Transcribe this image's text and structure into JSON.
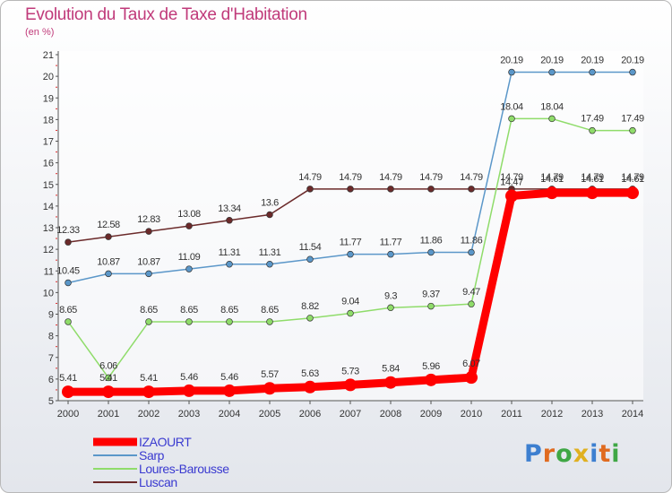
{
  "title": "Evolution du Taux de Taxe d'Habitation",
  "subtitle": "(en %)",
  "logo": {
    "text": "Proxiti",
    "colors": [
      "#3d7fd0",
      "#e06b20",
      "#3fa745",
      "#e0b020",
      "#3d7fd0",
      "#e06b20",
      "#3fa745"
    ]
  },
  "colors": {
    "izaourt": "#ff0000",
    "sarp": "#5b97c9",
    "loures": "#8fdc6a",
    "luscan": "#6b2a2a",
    "tick_mark": "#e03030"
  },
  "chart_data": {
    "type": "line",
    "title": "Evolution du Taux de Taxe d'Habitation",
    "ylabel": "(en %)",
    "xlabel": "",
    "x": [
      "2000",
      "2001",
      "2002",
      "2003",
      "2004",
      "2005",
      "2006",
      "2007",
      "2008",
      "2009",
      "2010",
      "2011",
      "2012",
      "2013",
      "2014"
    ],
    "ylim": [
      5,
      21
    ],
    "yticks": [
      "5",
      "6",
      "7",
      "8",
      "9",
      "10",
      "11",
      "12",
      "13",
      "14",
      "15",
      "16",
      "17",
      "18",
      "19",
      "20",
      "21"
    ],
    "grid": false,
    "legend_position": "bottom-left",
    "series": [
      {
        "name": "IZAOURT",
        "color": "#ff0000",
        "values": [
          5.41,
          5.41,
          5.41,
          5.46,
          5.46,
          5.57,
          5.63,
          5.73,
          5.84,
          5.96,
          6.07,
          14.47,
          14.61,
          14.61,
          14.61
        ],
        "labels": [
          "5.41",
          "5.41",
          "5.41",
          "5.46",
          "5.46",
          "5.57",
          "5.63",
          "5.73",
          "5.84",
          "5.96",
          "6.07",
          "14.47",
          "14.61",
          "14.61",
          "14.61"
        ]
      },
      {
        "name": "Sarp",
        "color": "#5b97c9",
        "values": [
          10.45,
          10.87,
          10.87,
          11.09,
          11.31,
          11.31,
          11.54,
          11.77,
          11.77,
          11.86,
          11.86,
          20.19,
          20.19,
          20.19,
          20.19
        ],
        "labels": [
          "10.45",
          "10.87",
          "10.87",
          "11.09",
          "11.31",
          "11.31",
          "11.54",
          "11.77",
          "11.77",
          "11.86",
          "11.86",
          "20.19",
          "20.19",
          "20.19",
          "20.19"
        ]
      },
      {
        "name": "Loures-Barousse",
        "color": "#8fdc6a",
        "values": [
          8.65,
          6.06,
          8.65,
          8.65,
          8.65,
          8.65,
          8.82,
          9.04,
          9.3,
          9.37,
          9.47,
          18.04,
          18.04,
          17.49,
          17.49
        ],
        "labels": [
          "8.65",
          "6.06",
          "8.65",
          "8.65",
          "8.65",
          "8.65",
          "8.82",
          "9.04",
          "9.3",
          "9.37",
          "9.47",
          "18.04",
          "18.04",
          "17.49",
          "17.49"
        ]
      },
      {
        "name": "Luscan",
        "color": "#6b2a2a",
        "values": [
          12.33,
          12.58,
          12.83,
          13.08,
          13.34,
          13.6,
          14.79,
          14.79,
          14.79,
          14.79,
          14.79,
          14.79,
          14.79,
          14.79,
          14.79
        ],
        "labels": [
          "12.33",
          "12.58",
          "12.83",
          "13.08",
          "13.34",
          "13.6",
          "14.79",
          "14.79",
          "14.79",
          "14.79",
          "14.79",
          "14.79",
          "14.79",
          "14.79",
          "14.79"
        ]
      }
    ]
  }
}
